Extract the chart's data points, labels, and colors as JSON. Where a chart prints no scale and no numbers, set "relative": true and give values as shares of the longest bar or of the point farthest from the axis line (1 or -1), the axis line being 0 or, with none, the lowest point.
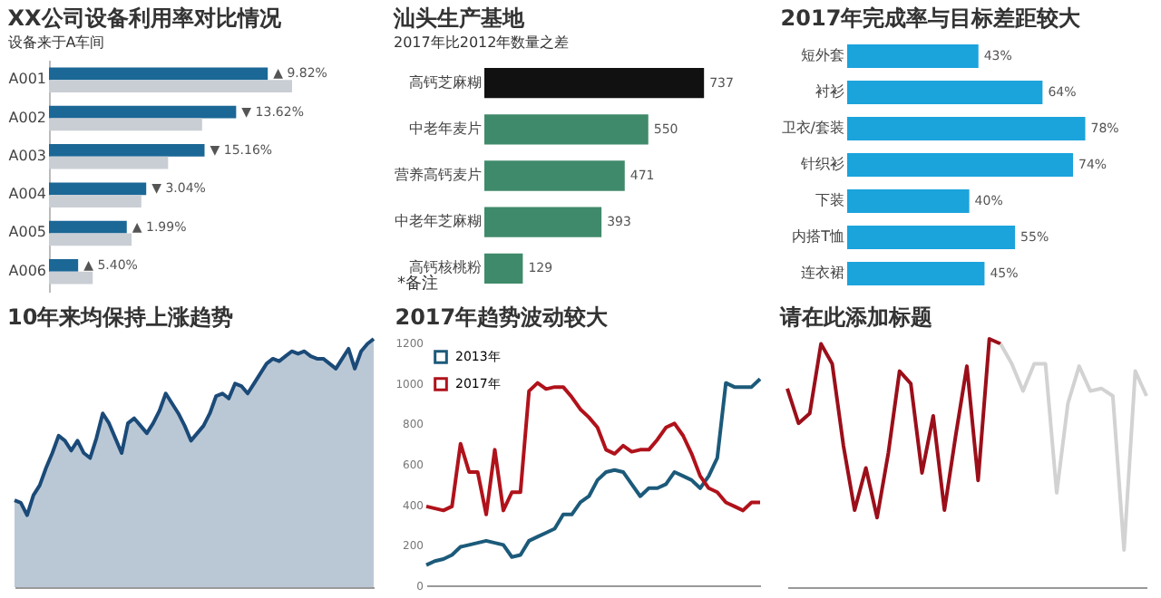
{
  "chart_data": [
    {
      "type": "bar",
      "orientation": "horizontal",
      "relative": true,
      "title": "XX公司设备利用率对比情况",
      "subtitle": "设备来于A车间",
      "categories": [
        "A001",
        "A002",
        "A003",
        "A004",
        "A005",
        "A006"
      ],
      "series": [
        {
          "color": "#1b6796",
          "values": [
            0.9,
            0.77,
            0.64,
            0.4,
            0.32,
            0.12
          ]
        },
        {
          "color": "#c9ced4",
          "values": [
            1,
            0.63,
            0.49,
            0.38,
            0.34,
            0.18
          ]
        }
      ],
      "annotations": [
        {
          "text": "▲ 9.82%",
          "x": 0.9,
          "y": "A001"
        },
        {
          "text": "▼ 13.62%",
          "x": 0.77,
          "y": "A002"
        },
        {
          "text": "▼ 15.16%",
          "x": 0.64,
          "y": "A003"
        },
        {
          "text": "▼ 3.04%",
          "x": 0.4,
          "y": "A004"
        },
        {
          "text": "▲ 1.99%",
          "x": 0.32,
          "y": "A005"
        },
        {
          "text": "▲ 5.40%",
          "x": 0.12,
          "y": "A006"
        }
      ]
    },
    {
      "type": "bar",
      "orientation": "horizontal",
      "title": "汕头生产基地",
      "subtitle": "2017年比2012年数量之差",
      "categories": [
        "高钙芝麻糊",
        "中老年麦片",
        "营养高钙麦片",
        "中老年芝麻糊",
        "高钙核桃粉"
      ],
      "values": [
        737,
        550,
        471,
        393,
        129
      ],
      "colors": [
        "#111111",
        "#3f8a6a",
        "#3f8a6a",
        "#3f8a6a",
        "#3f8a6a"
      ],
      "data_labels": true,
      "tick_labels": "y",
      "annotations": [
        "*备注"
      ]
    },
    {
      "type": "bar",
      "orientation": "horizontal",
      "title": "2017年完成率与目标差距较大",
      "categories": [
        "短外套",
        "衬衫",
        "卫衣/套装",
        "针织衫",
        "下装",
        "内搭T恤",
        "连衣裙"
      ],
      "values": [
        43,
        64,
        78,
        74,
        40,
        55,
        45
      ],
      "value_labels": [
        "43%",
        "64%",
        "78%",
        "74%",
        "40%",
        "55%",
        "45%"
      ],
      "color": "#1ba3dc",
      "tick_labels": "y"
    },
    {
      "type": "area",
      "relative": true,
      "title": "10年来均保持上涨趋势",
      "categories": [
        null,
        null,
        null,
        null,
        null,
        null,
        null,
        null,
        null,
        null,
        null,
        null,
        null,
        null,
        null,
        null,
        null,
        null,
        null,
        null,
        null,
        null,
        null,
        null,
        null,
        null,
        null,
        null,
        null,
        null,
        null,
        null,
        null,
        null,
        null,
        null,
        null,
        null,
        null,
        null,
        null,
        null,
        null,
        null,
        null,
        null,
        null,
        null,
        null,
        null,
        null,
        null,
        null,
        null,
        null,
        null,
        null,
        null
      ],
      "series": [
        {
          "color": "#1b4a78",
          "values": [
            0.35,
            0.34,
            0.29,
            0.37,
            0.41,
            0.48,
            0.54,
            0.61,
            0.59,
            0.55,
            0.59,
            0.54,
            0.52,
            0.6,
            0.7,
            0.66,
            0.6,
            0.54,
            0.66,
            0.68,
            0.65,
            0.62,
            0.66,
            0.71,
            0.78,
            0.74,
            0.7,
            0.65,
            0.59,
            0.62,
            0.65,
            0.7,
            0.77,
            0.78,
            0.76,
            0.82,
            0.81,
            0.78,
            0.82,
            0.86,
            0.9,
            0.92,
            0.91,
            0.93,
            0.95,
            0.94,
            0.95,
            0.93,
            0.92,
            0.92,
            0.9,
            0.88,
            0.92,
            0.96,
            0.88,
            0.95,
            0.98,
            1
          ]
        }
      ]
    },
    {
      "type": "line",
      "title": "2017年趋势波动较大",
      "legend": "top left",
      "ylim": [
        0,
        1200
      ],
      "yticks": [
        0,
        200,
        400,
        600,
        800,
        1000,
        1200
      ],
      "categories": [
        null,
        null,
        null,
        null,
        null,
        null,
        null,
        null,
        null,
        null,
        null,
        null,
        null,
        null,
        null,
        null,
        null,
        null,
        null,
        null,
        null,
        null,
        null,
        null,
        null,
        null,
        null,
        null,
        null,
        null,
        null,
        null,
        null,
        null,
        null,
        null,
        null,
        null,
        null,
        null
      ],
      "series": [
        {
          "name": "2013年",
          "color": "#1c5a7a",
          "values": [
            100,
            120,
            130,
            150,
            190,
            200,
            210,
            220,
            210,
            200,
            140,
            150,
            220,
            240,
            260,
            280,
            350,
            350,
            410,
            440,
            520,
            560,
            570,
            560,
            500,
            440,
            480,
            480,
            500,
            560,
            540,
            520,
            480,
            540,
            630,
            1000,
            980,
            980,
            980,
            1020
          ]
        },
        {
          "name": "2017年",
          "color": "#b0121b",
          "values": [
            390,
            380,
            370,
            390,
            700,
            560,
            560,
            350,
            670,
            370,
            460,
            460,
            960,
            1000,
            970,
            980,
            980,
            930,
            870,
            830,
            780,
            670,
            650,
            690,
            660,
            670,
            670,
            720,
            780,
            800,
            740,
            650,
            540,
            480,
            460,
            410,
            390,
            370,
            410,
            410
          ]
        }
      ]
    },
    {
      "type": "line",
      "relative": true,
      "title": "请在此添加标题",
      "categories": [
        null,
        null,
        null,
        null,
        null,
        null,
        null,
        null,
        null,
        null,
        null,
        null,
        null,
        null,
        null,
        null,
        null,
        null,
        null,
        null,
        null,
        null,
        null,
        null,
        null,
        null,
        null,
        null,
        null,
        null,
        null,
        null,
        null
      ],
      "series": [
        {
          "color": "#9b0f1a",
          "values": [
            0.8,
            0.66,
            0.7,
            0.98,
            0.9,
            0.57,
            0.31,
            0.48,
            0.28,
            0.54,
            0.87,
            0.82,
            0.46,
            0.69,
            0.31,
            0.61,
            0.89,
            0.43,
            1,
            0.98,
            null,
            null,
            null,
            null,
            null,
            null,
            null,
            null,
            null,
            null,
            null,
            null,
            null
          ]
        },
        {
          "color": "#d2d2d2",
          "values": [
            null,
            null,
            null,
            null,
            null,
            null,
            null,
            null,
            null,
            null,
            null,
            null,
            null,
            null,
            null,
            null,
            null,
            null,
            null,
            0.98,
            0.9,
            0.79,
            0.9,
            0.9,
            0.38,
            0.74,
            0.89,
            0.79,
            0.8,
            0.77,
            0.15,
            0.87,
            0.77
          ]
        }
      ]
    }
  ]
}
